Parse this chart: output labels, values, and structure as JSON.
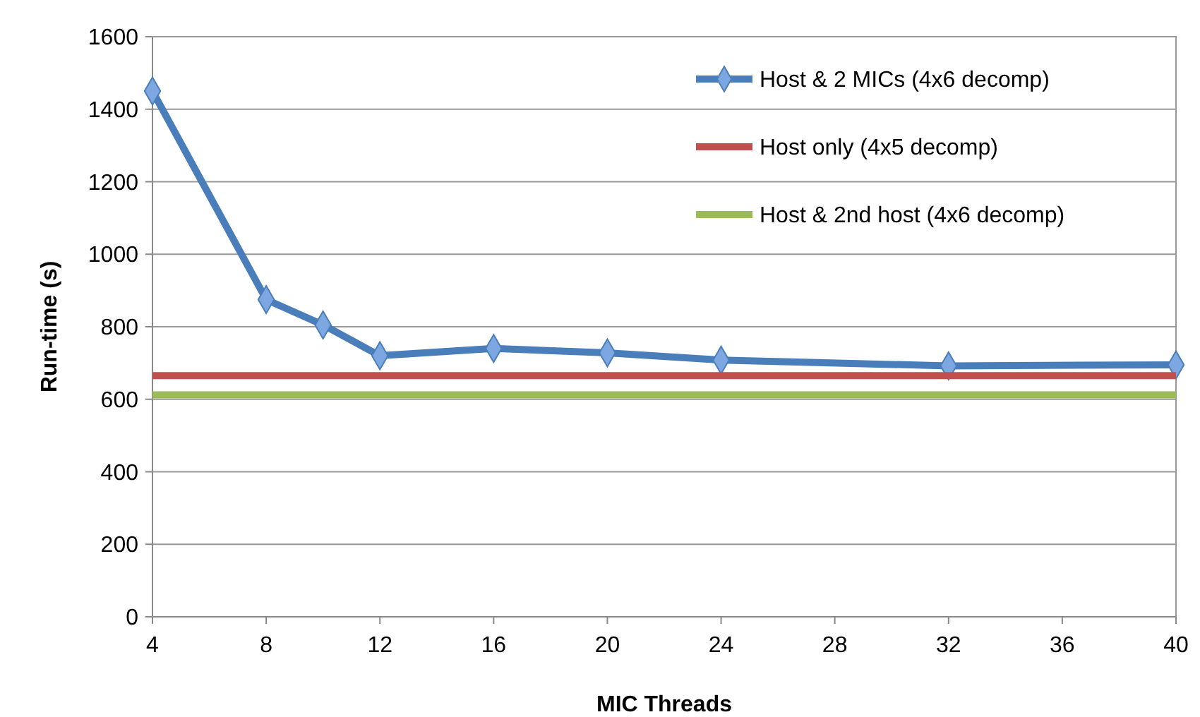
{
  "chart_data": {
    "type": "line",
    "xlabel": "MIC Threads",
    "ylabel": "Run-time (s)",
    "xlim": [
      4,
      40
    ],
    "xticks": [
      4,
      8,
      12,
      16,
      20,
      24,
      28,
      32,
      36,
      40
    ],
    "ylim": [
      0,
      1600
    ],
    "yticks": [
      0,
      200,
      400,
      600,
      800,
      1000,
      1200,
      1400,
      1600
    ],
    "grid": "y",
    "legend": "top right",
    "series": [
      {
        "name": "Host & 2 MICs (4x6 decomp)",
        "color": "#4a7ebb",
        "marker": "diamond",
        "x": [
          4,
          8,
          10,
          12,
          16,
          20,
          24,
          32,
          40
        ],
        "values": [
          1450,
          875,
          805,
          720,
          740,
          728,
          708,
          692,
          695
        ]
      },
      {
        "name": "Host only (4x5 decomp)",
        "color": "#c0504d",
        "marker": "none",
        "x": [
          4,
          40
        ],
        "values": [
          665,
          665
        ]
      },
      {
        "name": "Host & 2nd host (4x6 decomp)",
        "color": "#9bbb59",
        "marker": "none",
        "x": [
          4,
          40
        ],
        "values": [
          612,
          612
        ]
      }
    ]
  }
}
